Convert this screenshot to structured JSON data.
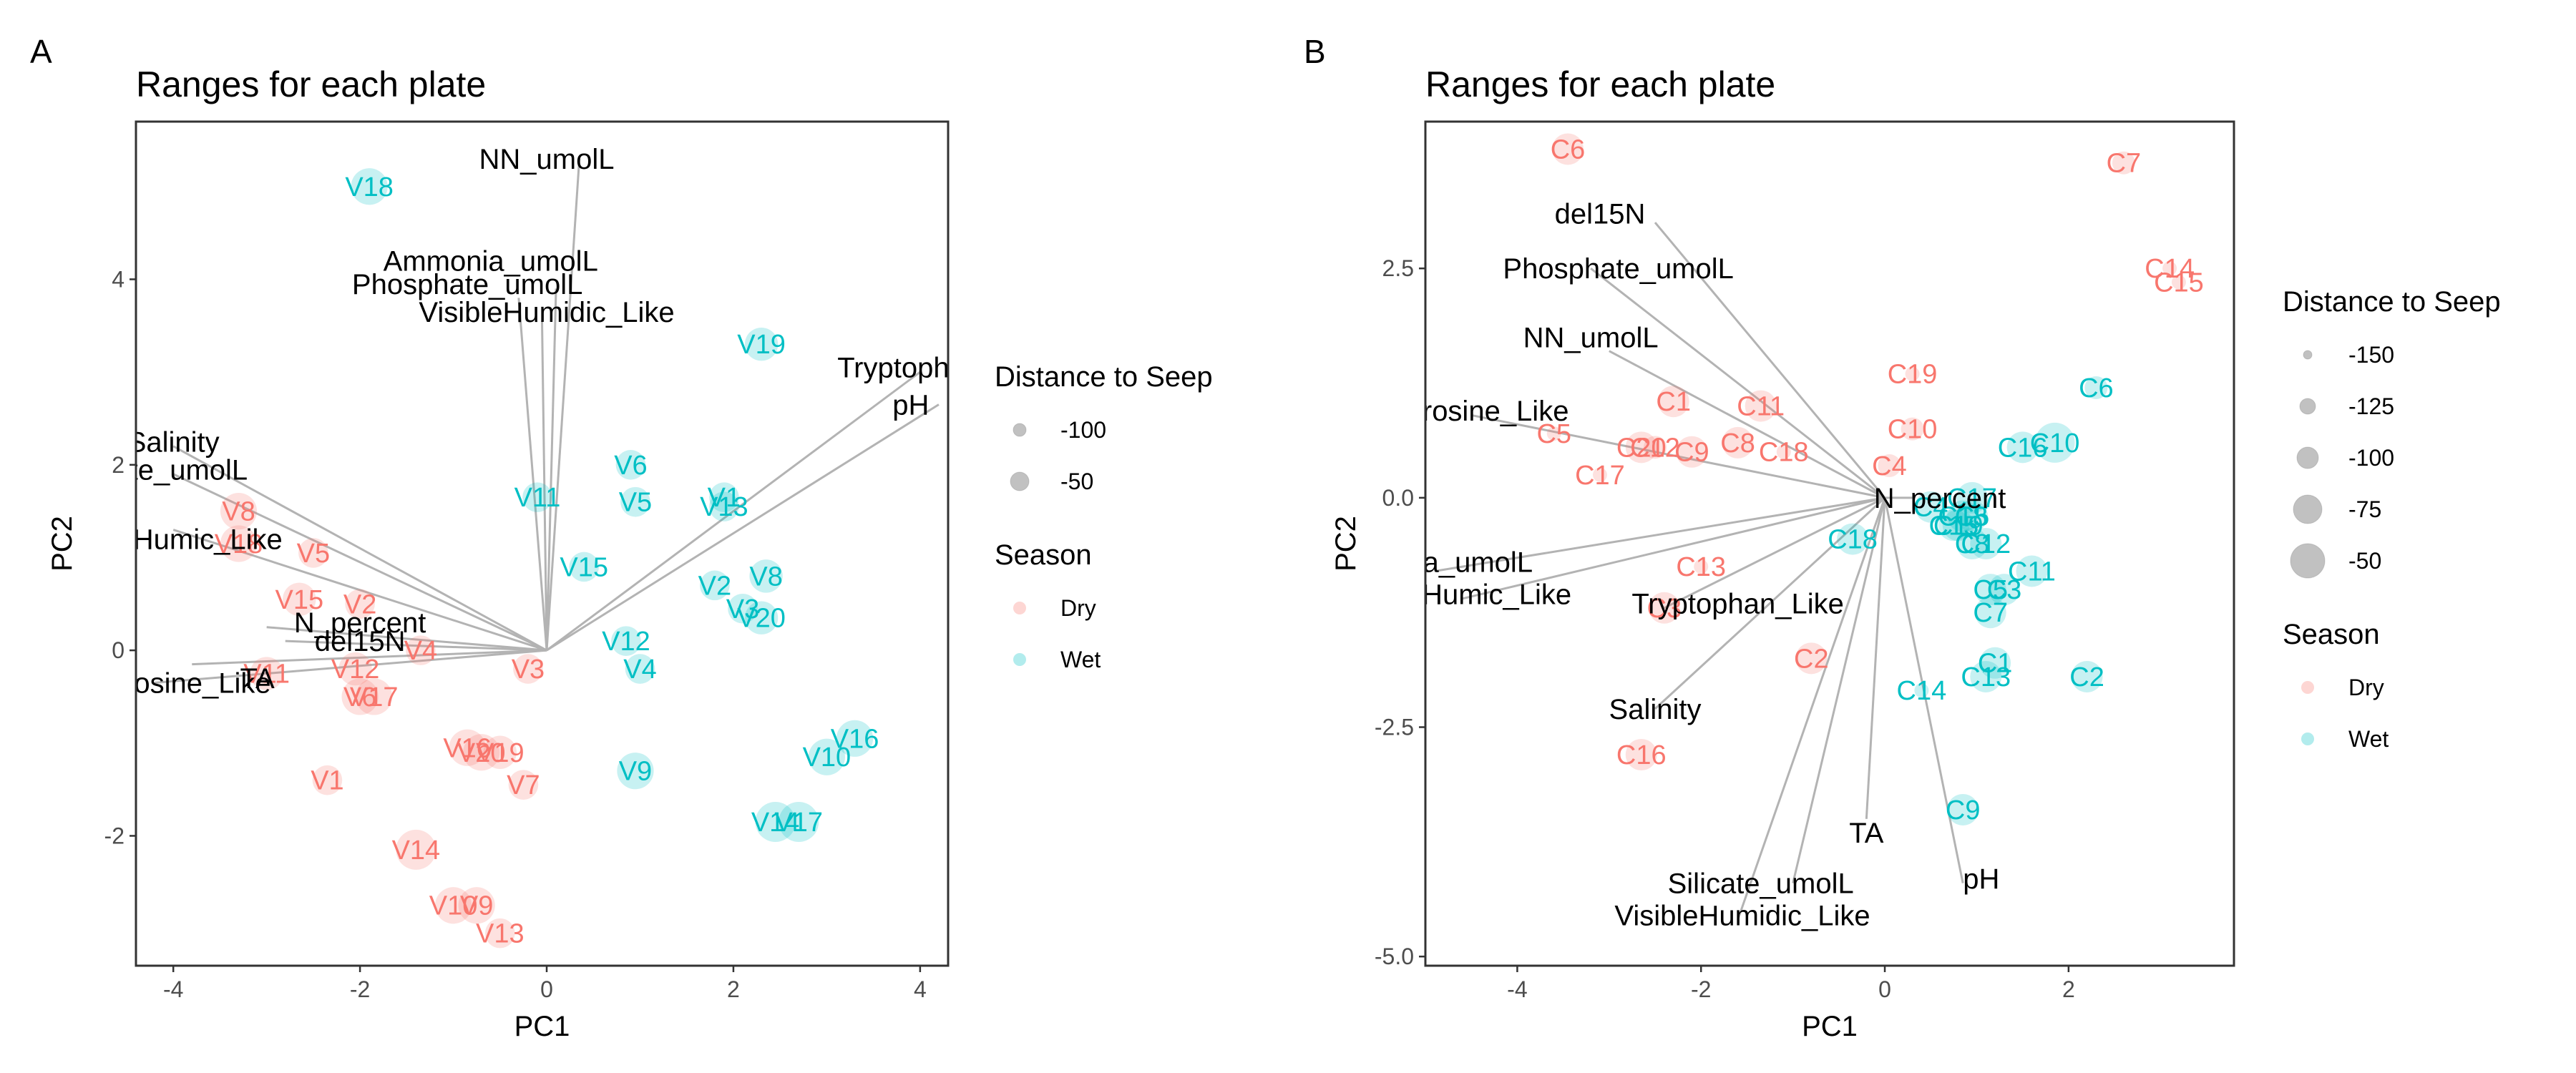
{
  "colors": {
    "dry": "#F8766D",
    "wet": "#00BFC4",
    "arrow": "#b3b3b3",
    "panel_border": "#333333"
  },
  "chart_data": [
    {
      "type": "scatter",
      "panel": "A",
      "title": "Ranges for each plate",
      "xlabel": "PC1",
      "ylabel": "PC2",
      "xlim": [
        -4.4,
        4.3
      ],
      "ylim": [
        -3.4,
        5.7
      ],
      "xticks": [
        -4,
        -2,
        0,
        2,
        4
      ],
      "yticks": [
        -2,
        0,
        2,
        4
      ],
      "grid": false,
      "legends": {
        "size_title": "Distance to Seep",
        "size_items": [
          {
            "label": "-100",
            "r": 9
          },
          {
            "label": "-50",
            "r": 13
          }
        ],
        "color_title": "Season",
        "color_items": [
          {
            "label": "Dry",
            "key": "dry"
          },
          {
            "label": "Wet",
            "key": "wet"
          }
        ]
      },
      "loadings": [
        {
          "name": "NN_umolL",
          "x": 0.35,
          "y": 5.3,
          "lx": 0.0,
          "ly": 5.3
        },
        {
          "name": "Ammonia_umolL",
          "x": 0.1,
          "y": 3.9,
          "lx": -0.6,
          "ly": 4.2
        },
        {
          "name": "Phosphate_umolL",
          "x": -0.3,
          "y": 3.8,
          "lx": -0.85,
          "ly": 3.95
        },
        {
          "name": "VisibleHumidic_Like",
          "x": -0.05,
          "y": 3.55,
          "lx": 0.0,
          "ly": 3.65
        },
        {
          "name": "Tryptophan_Like",
          "x": 4.0,
          "y": 3.0,
          "lx": 4.25,
          "ly": 3.05
        },
        {
          "name": "pH",
          "x": 4.2,
          "y": 2.65,
          "lx": 3.9,
          "ly": 2.65
        },
        {
          "name": "Salinity",
          "x": -4.0,
          "y": 2.2,
          "lx": -4.0,
          "ly": 2.25
        },
        {
          "name": "Silicate_umolL",
          "x": -4.0,
          "y": 1.9,
          "lx": -4.2,
          "ly": 1.95
        },
        {
          "name": "MarineHumic_Like",
          "x": -4.0,
          "y": 1.3,
          "lx": -4.1,
          "ly": 1.2
        },
        {
          "name": "N_percent",
          "x": -3.0,
          "y": 0.25,
          "lx": -2.0,
          "ly": 0.3
        },
        {
          "name": "del15N",
          "x": -2.8,
          "y": 0.1,
          "lx": -2.0,
          "ly": 0.1
        },
        {
          "name": "TA",
          "x": -3.8,
          "y": -0.15,
          "lx": -3.1,
          "ly": -0.3
        },
        {
          "name": "Tyrosine_Like",
          "x": -4.2,
          "y": -0.35,
          "lx": -3.9,
          "ly": -0.35
        }
      ],
      "points": [
        {
          "label": "V18",
          "x": -1.9,
          "y": 5.0,
          "season": "wet",
          "dist": -60
        },
        {
          "label": "V19",
          "x": 2.3,
          "y": 3.3,
          "season": "wet",
          "dist": -70
        },
        {
          "label": "V6",
          "x": 0.9,
          "y": 2.0,
          "season": "wet",
          "dist": -80
        },
        {
          "label": "V5",
          "x": 0.95,
          "y": 1.6,
          "season": "wet",
          "dist": -80
        },
        {
          "label": "V11",
          "x": -0.1,
          "y": 1.65,
          "season": "wet",
          "dist": -80
        },
        {
          "label": "V1",
          "x": 1.9,
          "y": 1.65,
          "season": "wet",
          "dist": -80
        },
        {
          "label": "V13",
          "x": 1.9,
          "y": 1.55,
          "season": "wet",
          "dist": -80
        },
        {
          "label": "V15",
          "x": 0.4,
          "y": 0.9,
          "season": "wet",
          "dist": -80
        },
        {
          "label": "V8",
          "x": 2.35,
          "y": 0.8,
          "season": "wet",
          "dist": -70
        },
        {
          "label": "V2",
          "x": 1.8,
          "y": 0.7,
          "season": "wet",
          "dist": -80
        },
        {
          "label": "V3",
          "x": 2.1,
          "y": 0.45,
          "season": "wet",
          "dist": -80
        },
        {
          "label": "V20",
          "x": 2.3,
          "y": 0.35,
          "season": "wet",
          "dist": -70
        },
        {
          "label": "V12",
          "x": 0.85,
          "y": 0.1,
          "season": "wet",
          "dist": -80
        },
        {
          "label": "V4",
          "x": 1.0,
          "y": -0.2,
          "season": "wet",
          "dist": -80
        },
        {
          "label": "V9",
          "x": 0.95,
          "y": -1.3,
          "season": "wet",
          "dist": -60
        },
        {
          "label": "V16",
          "x": 3.3,
          "y": -0.95,
          "season": "wet",
          "dist": -60
        },
        {
          "label": "V10",
          "x": 3.0,
          "y": -1.15,
          "season": "wet",
          "dist": -60
        },
        {
          "label": "V14",
          "x": 2.45,
          "y": -1.85,
          "season": "wet",
          "dist": -50
        },
        {
          "label": "V17",
          "x": 2.7,
          "y": -1.85,
          "season": "wet",
          "dist": -50
        },
        {
          "label": "V8",
          "x": -3.3,
          "y": 1.5,
          "season": "dry",
          "dist": -60
        },
        {
          "label": "V18",
          "x": -3.3,
          "y": 1.15,
          "season": "dry",
          "dist": -60
        },
        {
          "label": "V5",
          "x": -2.5,
          "y": 1.05,
          "season": "dry",
          "dist": -80
        },
        {
          "label": "V15",
          "x": -2.65,
          "y": 0.55,
          "season": "dry",
          "dist": -70
        },
        {
          "label": "V2",
          "x": -2.0,
          "y": 0.5,
          "season": "dry",
          "dist": -80
        },
        {
          "label": "V4",
          "x": -1.35,
          "y": 0.0,
          "season": "dry",
          "dist": -80
        },
        {
          "label": "V3",
          "x": -0.2,
          "y": -0.2,
          "season": "dry",
          "dist": -80
        },
        {
          "label": "V11",
          "x": -3.0,
          "y": -0.25,
          "season": "dry",
          "dist": -70
        },
        {
          "label": "V12",
          "x": -2.05,
          "y": -0.2,
          "season": "dry",
          "dist": -70
        },
        {
          "label": "V6",
          "x": -2.0,
          "y": -0.5,
          "season": "dry",
          "dist": -60
        },
        {
          "label": "V17",
          "x": -1.85,
          "y": -0.5,
          "season": "dry",
          "dist": -60
        },
        {
          "label": "V16",
          "x": -0.85,
          "y": -1.05,
          "season": "dry",
          "dist": -60
        },
        {
          "label": "V20",
          "x": -0.7,
          "y": -1.1,
          "season": "dry",
          "dist": -60
        },
        {
          "label": "V19",
          "x": -0.5,
          "y": -1.1,
          "season": "dry",
          "dist": -70
        },
        {
          "label": "V7",
          "x": -0.25,
          "y": -1.45,
          "season": "dry",
          "dist": -80
        },
        {
          "label": "V1",
          "x": -2.35,
          "y": -1.4,
          "season": "dry",
          "dist": -80
        },
        {
          "label": "V14",
          "x": -1.4,
          "y": -2.15,
          "season": "dry",
          "dist": -50
        },
        {
          "label": "V10",
          "x": -1.0,
          "y": -2.75,
          "season": "dry",
          "dist": -60
        },
        {
          "label": "V9",
          "x": -0.75,
          "y": -2.75,
          "season": "dry",
          "dist": -60
        },
        {
          "label": "V13",
          "x": -0.5,
          "y": -3.05,
          "season": "dry",
          "dist": -80
        }
      ]
    },
    {
      "type": "scatter",
      "panel": "B",
      "title": "Ranges for each plate",
      "xlabel": "PC1",
      "ylabel": "PC2",
      "xlim": [
        -5.0,
        3.8
      ],
      "ylim": [
        -5.1,
        4.1
      ],
      "xticks": [
        -4,
        -2,
        0,
        2
      ],
      "yticks": [
        -5.0,
        -2.5,
        0.0,
        2.5
      ],
      "ytick_labels": [
        "-5.0",
        "-2.5",
        "0.0",
        "2.5"
      ],
      "grid": false,
      "legends": {
        "size_title": "Distance to Seep",
        "size_items": [
          {
            "label": "-150",
            "r": 6
          },
          {
            "label": "-125",
            "r": 11
          },
          {
            "label": "-100",
            "r": 15
          },
          {
            "label": "-75",
            "r": 20
          },
          {
            "label": "-50",
            "r": 24
          }
        ],
        "color_title": "Season",
        "color_items": [
          {
            "label": "Dry",
            "key": "dry"
          },
          {
            "label": "Wet",
            "key": "wet"
          }
        ]
      },
      "loadings": [
        {
          "name": "del15N",
          "x": -2.5,
          "y": 3.0,
          "lx": -3.1,
          "ly": 3.1
        },
        {
          "name": "Phosphate_umolL",
          "x": -3.2,
          "y": 2.5,
          "lx": -2.9,
          "ly": 2.5
        },
        {
          "name": "NN_umolL",
          "x": -3.0,
          "y": 1.6,
          "lx": -3.2,
          "ly": 1.75
        },
        {
          "name": "Tyrosine_Like",
          "x": -4.5,
          "y": 0.9,
          "lx": -4.4,
          "ly": 0.95
        },
        {
          "name": "N_percent",
          "x": 0.3,
          "y": 0.0,
          "lx": 0.6,
          "ly": 0.0
        },
        {
          "name": "Ammonia_umolL",
          "x": -4.9,
          "y": -0.8,
          "lx": -5.0,
          "ly": -0.7
        },
        {
          "name": "MarineHumic_Like",
          "x": -4.6,
          "y": -1.1,
          "lx": -4.7,
          "ly": -1.05
        },
        {
          "name": "Tryptophan_Like",
          "x": -2.4,
          "y": -1.2,
          "lx": -1.6,
          "ly": -1.15
        },
        {
          "name": "Salinity",
          "x": -2.5,
          "y": -2.3,
          "lx": -2.5,
          "ly": -2.3
        },
        {
          "name": "TA",
          "x": -0.2,
          "y": -3.5,
          "lx": -0.2,
          "ly": -3.65
        },
        {
          "name": "Silicate_umolL",
          "x": -1.0,
          "y": -4.2,
          "lx": -1.35,
          "ly": -4.2
        },
        {
          "name": "VisibleHumidic_Like",
          "x": -1.6,
          "y": -4.6,
          "lx": -1.55,
          "ly": -4.55
        },
        {
          "name": "pH",
          "x": 0.85,
          "y": -4.2,
          "lx": 1.05,
          "ly": -4.15
        }
      ],
      "points": [
        {
          "label": "C6",
          "x": -3.45,
          "y": 3.8,
          "season": "dry",
          "dist": -75
        },
        {
          "label": "C7",
          "x": 2.6,
          "y": 3.65,
          "season": "dry",
          "dist": -100
        },
        {
          "label": "C14",
          "x": 3.1,
          "y": 2.5,
          "season": "dry",
          "dist": -125
        },
        {
          "label": "C15",
          "x": 3.2,
          "y": 2.35,
          "season": "dry",
          "dist": -125
        },
        {
          "label": "C19",
          "x": 0.3,
          "y": 1.35,
          "season": "dry",
          "dist": -125
        },
        {
          "label": "C1",
          "x": -2.3,
          "y": 1.05,
          "season": "dry",
          "dist": -75
        },
        {
          "label": "C11",
          "x": -1.35,
          "y": 1.0,
          "season": "dry",
          "dist": -75
        },
        {
          "label": "C10",
          "x": 0.3,
          "y": 0.75,
          "season": "dry",
          "dist": -100
        },
        {
          "label": "C5",
          "x": -3.6,
          "y": 0.7,
          "season": "dry",
          "dist": -125
        },
        {
          "label": "C20",
          "x": -2.65,
          "y": 0.55,
          "season": "dry",
          "dist": -75
        },
        {
          "label": "C12",
          "x": -2.5,
          "y": 0.55,
          "season": "dry",
          "dist": -100
        },
        {
          "label": "C9",
          "x": -2.1,
          "y": 0.5,
          "season": "dry",
          "dist": -75
        },
        {
          "label": "C8",
          "x": -1.6,
          "y": 0.6,
          "season": "dry",
          "dist": -75
        },
        {
          "label": "C18",
          "x": -1.1,
          "y": 0.5,
          "season": "dry",
          "dist": -125
        },
        {
          "label": "C4",
          "x": 0.05,
          "y": 0.35,
          "season": "dry",
          "dist": -100
        },
        {
          "label": "C17",
          "x": -3.1,
          "y": 0.25,
          "season": "dry",
          "dist": -125
        },
        {
          "label": "C13",
          "x": -2.0,
          "y": -0.75,
          "season": "dry",
          "dist": -125
        },
        {
          "label": "C3",
          "x": -2.4,
          "y": -1.2,
          "season": "dry",
          "dist": -75
        },
        {
          "label": "C2",
          "x": -0.8,
          "y": -1.75,
          "season": "dry",
          "dist": -75
        },
        {
          "label": "C16",
          "x": -2.65,
          "y": -2.8,
          "season": "dry",
          "dist": -75
        },
        {
          "label": "C6",
          "x": 2.3,
          "y": 1.2,
          "season": "wet",
          "dist": -100
        },
        {
          "label": "C10",
          "x": 1.85,
          "y": 0.6,
          "season": "wet",
          "dist": -50
        },
        {
          "label": "C16",
          "x": 1.5,
          "y": 0.55,
          "season": "wet",
          "dist": -75
        },
        {
          "label": "C17",
          "x": 0.95,
          "y": 0.0,
          "season": "wet",
          "dist": -75
        },
        {
          "label": "C4",
          "x": 0.5,
          "y": -0.1,
          "season": "wet",
          "dist": -75
        },
        {
          "label": "C18",
          "x": 0.85,
          "y": -0.2,
          "season": "wet",
          "dist": -75
        },
        {
          "label": "C5",
          "x": 0.95,
          "y": -0.2,
          "season": "wet",
          "dist": -75
        },
        {
          "label": "C19",
          "x": 0.8,
          "y": -0.3,
          "season": "wet",
          "dist": -75
        },
        {
          "label": "C15",
          "x": 0.75,
          "y": -0.3,
          "season": "wet",
          "dist": -75
        },
        {
          "label": "C18",
          "x": -0.35,
          "y": -0.45,
          "season": "wet",
          "dist": -75
        },
        {
          "label": "C8",
          "x": 0.95,
          "y": -0.5,
          "season": "wet",
          "dist": -75
        },
        {
          "label": "C12",
          "x": 1.1,
          "y": -0.5,
          "season": "wet",
          "dist": -75
        },
        {
          "label": "C11",
          "x": 1.6,
          "y": -0.8,
          "season": "wet",
          "dist": -75
        },
        {
          "label": "C5",
          "x": 1.15,
          "y": -1.0,
          "season": "wet",
          "dist": -75
        },
        {
          "label": "C3",
          "x": 1.3,
          "y": -1.0,
          "season": "wet",
          "dist": -75
        },
        {
          "label": "C7",
          "x": 1.15,
          "y": -1.25,
          "season": "wet",
          "dist": -75
        },
        {
          "label": "C1",
          "x": 1.2,
          "y": -1.8,
          "season": "wet",
          "dist": -75
        },
        {
          "label": "C13",
          "x": 1.1,
          "y": -1.95,
          "season": "wet",
          "dist": -75
        },
        {
          "label": "C2",
          "x": 2.2,
          "y": -1.95,
          "season": "wet",
          "dist": -75
        },
        {
          "label": "C14",
          "x": 0.4,
          "y": -2.1,
          "season": "wet",
          "dist": -125
        },
        {
          "label": "C9",
          "x": 0.85,
          "y": -3.4,
          "season": "wet",
          "dist": -75
        }
      ]
    }
  ]
}
